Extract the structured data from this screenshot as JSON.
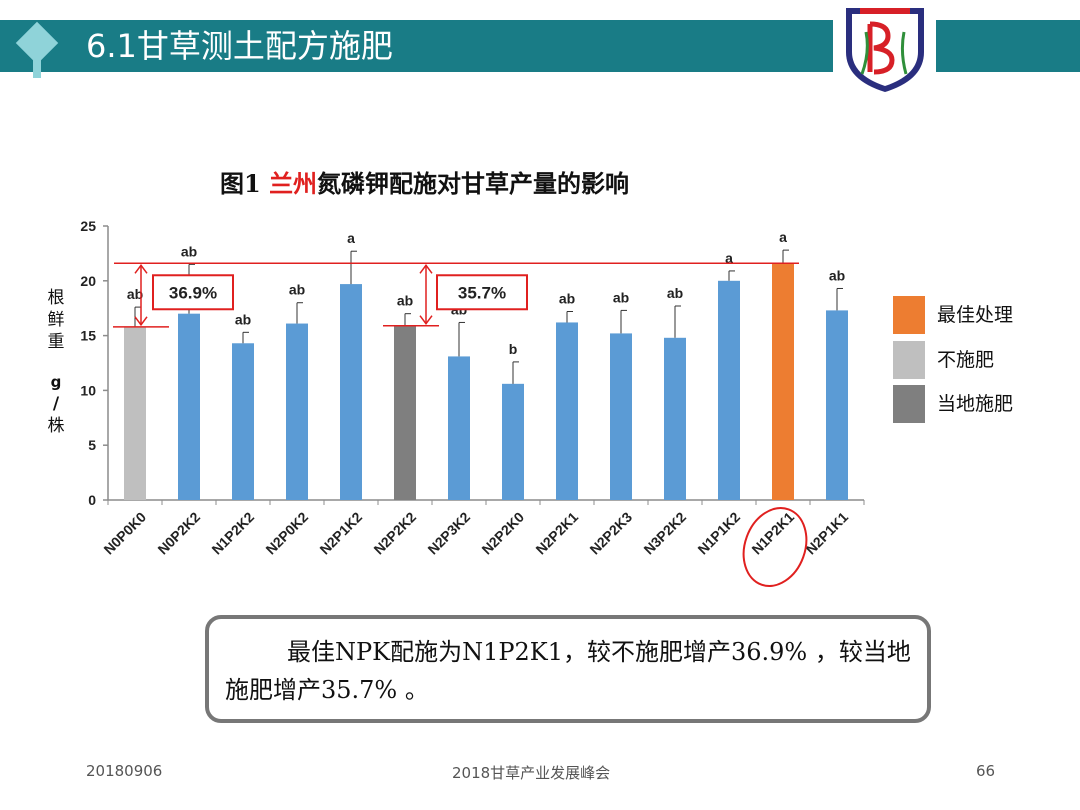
{
  "header": {
    "title": "6.1甘草测土配方施肥"
  },
  "chart_data": {
    "type": "bar",
    "title_prefix": "图1 ",
    "title_highlight": "兰州",
    "title_rest": "氮磷钾配施对甘草产量的影响",
    "ylabel_chars": [
      "根",
      "鲜",
      "重",
      "g",
      "/",
      "株"
    ],
    "ylim": [
      0,
      25
    ],
    "yticks": [
      0,
      5,
      10,
      15,
      20,
      25
    ],
    "categories": [
      "N0P0K0",
      "N0P2K2",
      "N1P2K2",
      "N2P0K2",
      "N2P1K2",
      "N2P2K2",
      "N2P3K2",
      "N2P2K0",
      "N2P2K1",
      "N2P2K3",
      "N3P2K2",
      "N1P1K2",
      "N1P2K1",
      "N2P1K1"
    ],
    "values": [
      15.8,
      17.0,
      14.3,
      16.1,
      19.7,
      15.9,
      13.1,
      10.6,
      16.2,
      15.2,
      14.8,
      20.0,
      21.6,
      17.3
    ],
    "errors": [
      1.8,
      4.5,
      1.0,
      1.9,
      3.0,
      1.1,
      3.1,
      2.0,
      1.0,
      2.1,
      2.9,
      0.9,
      1.2,
      2.0
    ],
    "significance": [
      "ab",
      "ab",
      "ab",
      "ab",
      "a",
      "ab",
      "ab",
      "b",
      "ab",
      "ab",
      "ab",
      "a",
      "a",
      "ab"
    ],
    "bar_groups": [
      "none",
      "treat",
      "treat",
      "treat",
      "treat",
      "local",
      "treat",
      "treat",
      "treat",
      "treat",
      "treat",
      "treat",
      "best",
      "treat"
    ],
    "annotations": [
      "36.9%",
      "35.7%"
    ],
    "grid": false,
    "legend_position": "right",
    "legend": [
      {
        "label": "最佳处理",
        "color": "#ed7d31"
      },
      {
        "label": "不施肥",
        "color": "#bfbfbf"
      },
      {
        "label": "当地施肥",
        "color": "#7f7f7f"
      }
    ],
    "colors": {
      "treat": "#5b9bd5",
      "none": "#bfbfbf",
      "local": "#7f7f7f",
      "best": "#ed7d31",
      "annot": "#e0201f"
    }
  },
  "callout": {
    "text": "最佳NPK配施为N1P2K1，较不施肥增产36.9% ，较当地施肥增产35.7% 。"
  },
  "footer": {
    "date": "20180906",
    "event": "2018甘草产业发展峰会",
    "page": "66"
  }
}
